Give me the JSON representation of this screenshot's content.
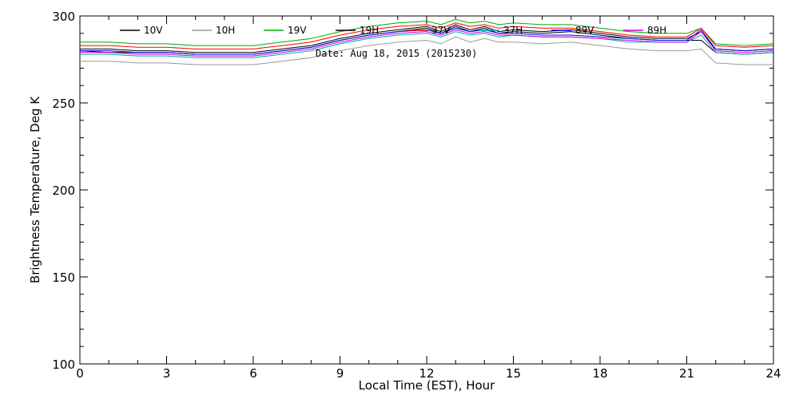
{
  "chart_data": {
    "type": "line",
    "title": "",
    "annotation": "Date: Aug 18, 2015 (2015230)",
    "xlabel": "Local Time (EST), Hour",
    "ylabel": "Brightness Temperature, Deg K",
    "xlim": [
      0,
      24
    ],
    "ylim": [
      100,
      300
    ],
    "xticks": [
      0,
      3,
      6,
      9,
      12,
      15,
      18,
      21,
      24
    ],
    "yticks": [
      100,
      150,
      200,
      250,
      300
    ],
    "grid": false,
    "legend_placement": "top",
    "x": [
      0,
      1,
      2,
      3,
      4,
      5,
      6,
      7,
      8,
      9,
      10,
      11,
      12,
      12.5,
      13,
      13.5,
      14,
      14.5,
      15,
      16,
      17,
      18,
      19,
      20,
      21,
      21.5,
      22,
      23,
      24
    ],
    "series": [
      {
        "name": "10V",
        "color": "#000000",
        "values": [
          280,
          279,
          279,
          279,
          278,
          278,
          278,
          280,
          282,
          286,
          289,
          291,
          293,
          290,
          294,
          291,
          293,
          290,
          291,
          290,
          291,
          289,
          287,
          286,
          286,
          286,
          279,
          278,
          279
        ]
      },
      {
        "name": "10H",
        "color": "#999999",
        "values": [
          274,
          274,
          273,
          273,
          272,
          272,
          272,
          274,
          276,
          280,
          283,
          285,
          286,
          284,
          288,
          285,
          287,
          285,
          285,
          284,
          285,
          283,
          281,
          280,
          280,
          281,
          273,
          272,
          272
        ]
      },
      {
        "name": "19V",
        "color": "#00aa00",
        "values": [
          285,
          285,
          284,
          284,
          283,
          283,
          283,
          285,
          287,
          291,
          294,
          296,
          297,
          295,
          298,
          296,
          297,
          295,
          296,
          295,
          295,
          293,
          291,
          290,
          290,
          293,
          284,
          283,
          284
        ]
      },
      {
        "name": "19H",
        "color": "#000000",
        "values": [
          281,
          281,
          280,
          280,
          279,
          279,
          279,
          281,
          283,
          287,
          290,
          292,
          294,
          291,
          295,
          292,
          294,
          291,
          292,
          291,
          292,
          290,
          288,
          287,
          287,
          291,
          281,
          280,
          281
        ]
      },
      {
        "name": "37V",
        "color": "#ff0000",
        "values": [
          283,
          283,
          282,
          282,
          281,
          281,
          281,
          283,
          285,
          289,
          292,
          294,
          295,
          293,
          296,
          294,
          295,
          293,
          294,
          293,
          293,
          291,
          289,
          288,
          288,
          293,
          283,
          282,
          283
        ]
      },
      {
        "name": "37H",
        "color": "#00aaaa",
        "values": [
          278,
          278,
          277,
          277,
          276,
          276,
          276,
          278,
          280,
          284,
          287,
          289,
          290,
          288,
          291,
          289,
          290,
          288,
          289,
          288,
          288,
          287,
          285,
          285,
          285,
          289,
          279,
          278,
          279
        ]
      },
      {
        "name": "89V",
        "color": "#0000ff",
        "values": [
          280,
          280,
          279,
          279,
          278,
          278,
          278,
          280,
          282,
          286,
          289,
          291,
          292,
          290,
          293,
          291,
          292,
          290,
          290,
          289,
          289,
          288,
          287,
          286,
          286,
          292,
          281,
          280,
          281
        ]
      },
      {
        "name": "89H",
        "color": "#cc00cc",
        "values": [
          279,
          279,
          278,
          278,
          277,
          277,
          277,
          279,
          281,
          285,
          288,
          290,
          291,
          289,
          292,
          290,
          291,
          289,
          289,
          288,
          288,
          287,
          286,
          285,
          285,
          291,
          280,
          279,
          280
        ]
      }
    ]
  }
}
